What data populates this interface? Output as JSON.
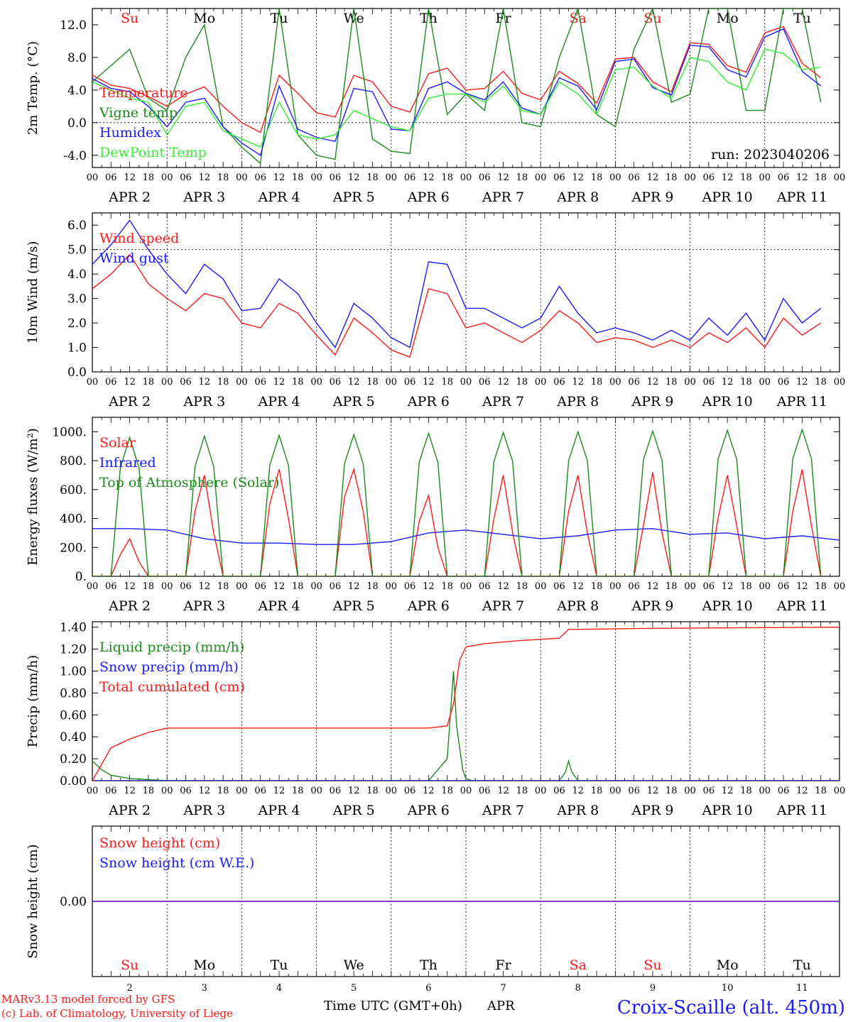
{
  "footer": {
    "credit_line1": "MARv3.13 model forced by GFS",
    "credit_line2": "(c) Lab. of Climatology, University of Liege",
    "xaxis_title": "Time UTC (GMT+0h)",
    "month": "APR",
    "station": "Croix-Scaille (alt. 450m)"
  },
  "colors": {
    "red": "#ff1a1a",
    "green": "#1a8a1a",
    "blue": "#1a1aff",
    "lightgreen": "#33ee33",
    "purple": "#8a2be2",
    "axis": "#000000"
  },
  "chart_data": [
    {
      "type": "line",
      "ylabel": "2m Temp. (°C)",
      "ylim": [
        -5.5,
        14.0
      ],
      "yticks": [
        -4.0,
        0.0,
        4.0,
        8.0,
        12.0
      ],
      "ytick_labels": [
        "-4.0",
        "0.0",
        "4.0",
        "8.0",
        "12.0"
      ],
      "dotted_y": [
        0.0
      ],
      "run_label": "run: 2023040206",
      "day_names": [
        "Su",
        "Mo",
        "Tu",
        "We",
        "Th",
        "Fr",
        "Sa",
        "Su",
        "Mo",
        "Tu"
      ],
      "weekend_days": [
        0,
        6,
        7
      ],
      "x_unit": "hours since 2023-04-02 00 UTC",
      "series": [
        {
          "name": "Temperature",
          "color": "red",
          "x": [
            0,
            6,
            12,
            18,
            24,
            30,
            36,
            42,
            48,
            54,
            60,
            66,
            72,
            78,
            84,
            90,
            96,
            102,
            108,
            114,
            120,
            126,
            132,
            138,
            144,
            150,
            156,
            162,
            168,
            174,
            180,
            186,
            192,
            198,
            204,
            210,
            216,
            222,
            228,
            234
          ],
          "values": [
            5.8,
            4.6,
            4.2,
            3.2,
            2.0,
            3.5,
            4.4,
            2.0,
            0.0,
            -1.2,
            5.8,
            3.6,
            1.2,
            0.7,
            5.8,
            5.0,
            2.0,
            1.3,
            6.0,
            6.7,
            4.0,
            4.2,
            6.3,
            3.6,
            2.8,
            6.3,
            4.8,
            2.4,
            7.8,
            8.0,
            5.0,
            3.8,
            9.8,
            9.6,
            7.0,
            6.2,
            11.0,
            11.8,
            7.3,
            5.5
          ]
        },
        {
          "name": "Vigne temp",
          "color": "green",
          "x": [
            0,
            6,
            12,
            18,
            24,
            30,
            36,
            42,
            48,
            54,
            60,
            66,
            72,
            78,
            84,
            90,
            96,
            102,
            108,
            114,
            120,
            126,
            132,
            138,
            144,
            150,
            156,
            162,
            168,
            174,
            180,
            186,
            192,
            198,
            204,
            210,
            216,
            222,
            228,
            234
          ],
          "values": [
            5.0,
            7.0,
            9.0,
            3.0,
            1.5,
            8.0,
            12.0,
            -0.5,
            -3.0,
            -5.0,
            14.0,
            -1.5,
            -4.0,
            -4.5,
            14.0,
            -2.0,
            -3.5,
            -3.8,
            14.0,
            1.0,
            3.5,
            1.5,
            14.0,
            0.0,
            -0.5,
            8.0,
            14.0,
            1.0,
            -0.5,
            9.0,
            14.0,
            2.5,
            3.5,
            14.0,
            14.0,
            1.5,
            1.5,
            14.0,
            14.0,
            2.5
          ]
        },
        {
          "name": "Humidex",
          "color": "blue",
          "x": [
            0,
            6,
            12,
            18,
            24,
            30,
            36,
            42,
            48,
            54,
            60,
            66,
            72,
            78,
            84,
            90,
            96,
            102,
            108,
            114,
            120,
            126,
            132,
            138,
            144,
            150,
            156,
            162,
            168,
            174,
            180,
            186,
            192,
            198,
            204,
            210,
            216,
            222,
            228,
            234
          ],
          "values": [
            5.4,
            4.2,
            3.8,
            2.0,
            -0.5,
            2.5,
            3.0,
            -0.5,
            -2.5,
            -4.0,
            4.5,
            -0.8,
            -1.8,
            -2.3,
            4.2,
            3.8,
            -0.8,
            -1.0,
            4.2,
            5.0,
            3.6,
            2.8,
            5.0,
            1.8,
            1.0,
            5.5,
            4.5,
            1.6,
            7.5,
            7.8,
            4.3,
            3.4,
            9.5,
            9.3,
            6.5,
            5.6,
            10.5,
            11.5,
            6.3,
            4.5
          ]
        },
        {
          "name": "DewPoint Temp",
          "color": "lightgreen",
          "x": [
            0,
            6,
            12,
            18,
            24,
            30,
            36,
            42,
            48,
            54,
            60,
            66,
            72,
            78,
            84,
            90,
            96,
            102,
            108,
            114,
            120,
            126,
            132,
            138,
            144,
            150,
            156,
            162,
            168,
            174,
            180,
            186,
            192,
            198,
            204,
            210,
            216,
            222,
            228,
            234
          ],
          "values": [
            5.0,
            4.0,
            3.0,
            2.5,
            -1.5,
            2.0,
            2.5,
            -1.0,
            -2.0,
            -3.0,
            2.5,
            -1.5,
            -2.0,
            -1.5,
            1.5,
            0.5,
            -0.5,
            -1.0,
            3.0,
            3.5,
            3.5,
            2.5,
            4.5,
            1.5,
            1.0,
            5.0,
            3.5,
            1.0,
            6.5,
            6.8,
            4.5,
            3.0,
            8.0,
            7.5,
            5.0,
            4.0,
            9.0,
            8.5,
            6.5,
            6.8
          ]
        }
      ]
    },
    {
      "type": "line",
      "ylabel": "10m Wind (m/s)",
      "ylim": [
        0.0,
        6.5
      ],
      "yticks": [
        0.0,
        1.0,
        2.0,
        3.0,
        4.0,
        5.0,
        6.0
      ],
      "ytick_labels": [
        "0.0",
        "1.0",
        "2.0",
        "3.0",
        "4.0",
        "5.0",
        "6.0"
      ],
      "dotted_y": [
        5.0
      ],
      "x_unit": "hours since 2023-04-02 00 UTC",
      "series": [
        {
          "name": "Wind speed",
          "color": "red",
          "x": [
            0,
            6,
            12,
            18,
            24,
            30,
            36,
            42,
            48,
            54,
            60,
            66,
            72,
            78,
            84,
            90,
            96,
            102,
            108,
            114,
            120,
            126,
            132,
            138,
            144,
            150,
            156,
            162,
            168,
            174,
            180,
            186,
            192,
            198,
            204,
            210,
            216,
            222,
            228,
            234
          ],
          "values": [
            3.4,
            4.0,
            4.8,
            3.6,
            3.0,
            2.5,
            3.2,
            3.0,
            2.0,
            1.8,
            2.8,
            2.4,
            1.5,
            0.7,
            2.2,
            1.6,
            0.9,
            0.6,
            3.4,
            3.2,
            1.8,
            2.0,
            1.6,
            1.2,
            1.7,
            2.5,
            2.0,
            1.2,
            1.4,
            1.3,
            1.0,
            1.3,
            1.0,
            1.6,
            1.2,
            1.8,
            1.0,
            2.2,
            1.5,
            2.0
          ]
        },
        {
          "name": "Wind gust",
          "color": "blue",
          "x": [
            0,
            6,
            12,
            18,
            24,
            30,
            36,
            42,
            48,
            54,
            60,
            66,
            72,
            78,
            84,
            90,
            96,
            102,
            108,
            114,
            120,
            126,
            132,
            138,
            144,
            150,
            156,
            162,
            168,
            174,
            180,
            186,
            192,
            198,
            204,
            210,
            216,
            222,
            228,
            234
          ],
          "values": [
            4.4,
            5.2,
            6.2,
            5.0,
            4.0,
            3.2,
            4.4,
            3.8,
            2.5,
            2.6,
            3.8,
            3.2,
            2.0,
            1.0,
            2.8,
            2.2,
            1.4,
            1.0,
            4.5,
            4.4,
            2.6,
            2.6,
            2.2,
            1.8,
            2.2,
            3.5,
            2.4,
            1.6,
            1.8,
            1.6,
            1.3,
            1.7,
            1.3,
            2.2,
            1.5,
            2.4,
            1.3,
            3.0,
            2.0,
            2.6
          ]
        }
      ]
    },
    {
      "type": "line",
      "ylabel": "Energy fluxes (W/m²)",
      "ylim": [
        0,
        1100
      ],
      "yticks": [
        0,
        200,
        400,
        600,
        800,
        1000
      ],
      "ytick_labels": [
        "0.",
        "200.",
        "400.",
        "600.",
        "800.",
        "1000."
      ],
      "x_unit": "hours since 2023-04-02 00 UTC",
      "series": [
        {
          "name": "Solar",
          "color": "red",
          "x": [
            0,
            6,
            9,
            12,
            15,
            18,
            24,
            30,
            33,
            36,
            39,
            42,
            48,
            54,
            57,
            60,
            63,
            66,
            72,
            78,
            81,
            84,
            87,
            90,
            96,
            102,
            105,
            108,
            111,
            114,
            120,
            126,
            129,
            132,
            135,
            138,
            144,
            150,
            153,
            156,
            159,
            162,
            168,
            174,
            177,
            180,
            183,
            186,
            192,
            198,
            201,
            204,
            207,
            210,
            216,
            222,
            225,
            228,
            231,
            234
          ],
          "values": [
            0,
            0,
            150,
            260,
            100,
            0,
            0,
            0,
            450,
            700,
            300,
            0,
            0,
            0,
            500,
            740,
            400,
            0,
            0,
            0,
            550,
            740,
            450,
            0,
            0,
            0,
            380,
            560,
            200,
            0,
            0,
            0,
            400,
            700,
            300,
            0,
            0,
            0,
            450,
            700,
            300,
            0,
            0,
            0,
            350,
            720,
            300,
            0,
            0,
            0,
            400,
            700,
            350,
            0,
            0,
            0,
            450,
            740,
            350,
            0
          ]
        },
        {
          "name": "Infrared",
          "color": "blue",
          "x": [
            0,
            12,
            24,
            36,
            48,
            60,
            72,
            84,
            96,
            108,
            120,
            132,
            144,
            156,
            168,
            180,
            192,
            204,
            216,
            228,
            240
          ],
          "values": [
            330,
            330,
            320,
            260,
            230,
            230,
            220,
            220,
            240,
            300,
            320,
            290,
            260,
            280,
            320,
            330,
            290,
            300,
            260,
            280,
            250
          ]
        },
        {
          "name": "Top of Atmosphere (Solar)",
          "color": "green",
          "x": [
            0,
            6,
            9,
            12,
            15,
            18,
            24,
            30,
            33,
            36,
            39,
            42,
            48,
            54,
            57,
            60,
            63,
            66,
            72,
            78,
            81,
            84,
            87,
            90,
            96,
            102,
            105,
            108,
            111,
            114,
            120,
            126,
            129,
            132,
            135,
            138,
            144,
            150,
            153,
            156,
            159,
            162,
            168,
            174,
            177,
            180,
            183,
            186,
            192,
            198,
            201,
            204,
            207,
            210,
            216,
            222,
            225,
            228,
            231,
            234
          ],
          "values": [
            0,
            0,
            750,
            960,
            750,
            0,
            0,
            0,
            760,
            970,
            760,
            0,
            0,
            0,
            770,
            975,
            770,
            0,
            0,
            0,
            780,
            980,
            780,
            0,
            0,
            0,
            790,
            990,
            790,
            0,
            0,
            0,
            795,
            995,
            795,
            0,
            0,
            0,
            800,
            1000,
            800,
            0,
            0,
            0,
            805,
            1005,
            805,
            0,
            0,
            0,
            810,
            1010,
            810,
            0,
            0,
            0,
            815,
            1015,
            815,
            0
          ]
        }
      ]
    },
    {
      "type": "line",
      "ylabel": "Precip (mm/h)",
      "ylim": [
        0.0,
        1.45
      ],
      "yticks": [
        0.0,
        0.2,
        0.4,
        0.6,
        0.8,
        1.0,
        1.2,
        1.4
      ],
      "ytick_labels": [
        "0.00",
        "0.20",
        "0.40",
        "0.60",
        "0.80",
        "1.00",
        "1.20",
        "1.40"
      ],
      "x_unit": "hours since 2023-04-02 00 UTC",
      "series": [
        {
          "name": "Liquid precip (mm/h)",
          "color": "green",
          "x": [
            0,
            3,
            6,
            12,
            18,
            24,
            30,
            108,
            114,
            116,
            117,
            118,
            119,
            120,
            122,
            126,
            150,
            152,
            153,
            154,
            156,
            162,
            240
          ],
          "values": [
            0.18,
            0.1,
            0.05,
            0.02,
            0.01,
            0.0,
            0.0,
            0.0,
            0.2,
            1.0,
            0.5,
            0.3,
            0.1,
            0.02,
            0.0,
            0.0,
            0.0,
            0.08,
            0.18,
            0.08,
            0.0,
            0.0,
            0.0
          ]
        },
        {
          "name": "Snow precip (mm/h)",
          "color": "blue",
          "x": [
            0,
            240
          ],
          "values": [
            0.0,
            0.0
          ]
        },
        {
          "name": "Total cumulated (cm)",
          "color": "red",
          "x": [
            0,
            6,
            12,
            18,
            24,
            30,
            108,
            114,
            116,
            117,
            118,
            120,
            126,
            138,
            150,
            153,
            156,
            180,
            240
          ],
          "values": [
            0.0,
            0.3,
            0.38,
            0.44,
            0.48,
            0.48,
            0.48,
            0.5,
            0.7,
            0.9,
            1.1,
            1.22,
            1.25,
            1.28,
            1.3,
            1.38,
            1.38,
            1.39,
            1.4
          ]
        }
      ]
    },
    {
      "type": "line",
      "ylabel": "Snow height (cm)",
      "ylim": [
        -1.0,
        1.0
      ],
      "yticks": [
        0.0
      ],
      "ytick_labels": [
        "0.00"
      ],
      "day_names": [
        "Su",
        "Mo",
        "Tu",
        "We",
        "Th",
        "Fr",
        "Sa",
        "Su",
        "Mo",
        "Tu"
      ],
      "weekend_days": [
        0,
        6,
        7
      ],
      "x_unit": "hours since 2023-04-02 00 UTC",
      "series": [
        {
          "name": "Snow height (cm)",
          "color": "red",
          "x": [
            0,
            240
          ],
          "values": [
            0.0,
            0.0
          ]
        },
        {
          "name": "Snow height (cm W.E.)",
          "color": "blue",
          "x": [
            0,
            240
          ],
          "values": [
            0.0,
            0.0
          ]
        }
      ]
    }
  ],
  "xaxis": {
    "hour_labels": [
      "00",
      "06",
      "12",
      "18"
    ],
    "end_label": "00",
    "day_labels": [
      "APR  2",
      "APR  3",
      "APR  4",
      "APR  5",
      "APR  6",
      "APR  7",
      "APR  8",
      "APR  9",
      "APR 10",
      "APR 11"
    ],
    "bottom_day_numbers": [
      "2",
      "3",
      "4",
      "5",
      "6",
      "7",
      "8",
      "9",
      "10",
      "11"
    ]
  }
}
